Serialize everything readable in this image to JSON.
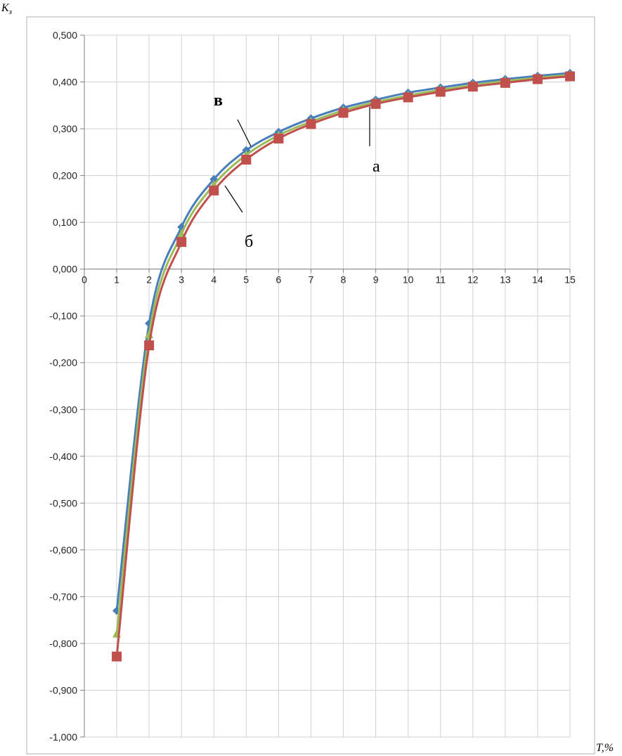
{
  "chart_data": {
    "type": "line",
    "title": "",
    "xlabel": "T,%",
    "ylabel": "Kз",
    "ylim": [
      -1.0,
      0.5
    ],
    "xlim": [
      0,
      15
    ],
    "x_ticks": [
      0,
      1,
      2,
      3,
      4,
      5,
      6,
      7,
      8,
      9,
      10,
      11,
      12,
      13,
      14,
      15
    ],
    "y_ticks": [
      "0,500",
      "0,400",
      "0,300",
      "0,200",
      "0,100",
      "0,000",
      "-0,100",
      "-0,200",
      "-0,300",
      "-0,400",
      "-0,500",
      "-0,600",
      "-0,700",
      "-0,800",
      "-0,900",
      "-1,000"
    ],
    "grid": true,
    "legend": "none",
    "series": [
      {
        "name": "в",
        "color": "#4a7ebb",
        "marker": "diamond",
        "x": [
          1,
          2,
          3,
          4,
          5,
          6,
          7,
          8,
          9,
          10,
          11,
          12,
          13,
          14,
          15
        ],
        "y": [
          -0.73,
          -0.116,
          0.09,
          0.192,
          0.254,
          0.293,
          0.322,
          0.345,
          0.362,
          0.377,
          0.388,
          0.398,
          0.406,
          0.413,
          0.419
        ]
      },
      {
        "name": "",
        "color": "#9bbb59",
        "marker": "triangle",
        "x": [
          1,
          2,
          3,
          4,
          5,
          6,
          7,
          8,
          9,
          10,
          11,
          12,
          13,
          14,
          15
        ],
        "y": [
          -0.78,
          -0.14,
          0.075,
          0.18,
          0.244,
          0.286,
          0.315,
          0.339,
          0.357,
          0.371,
          0.383,
          0.393,
          0.402,
          0.409,
          0.415
        ]
      },
      {
        "name": "б",
        "color": "#c0504d",
        "marker": "square",
        "x": [
          1,
          2,
          3,
          4,
          5,
          6,
          7,
          8,
          9,
          10,
          11,
          12,
          13,
          14,
          15
        ],
        "y": [
          -0.828,
          -0.163,
          0.058,
          0.168,
          0.234,
          0.279,
          0.31,
          0.334,
          0.353,
          0.367,
          0.379,
          0.39,
          0.398,
          0.406,
          0.412
        ]
      }
    ],
    "annotations": [
      "в",
      "б",
      "а"
    ]
  }
}
